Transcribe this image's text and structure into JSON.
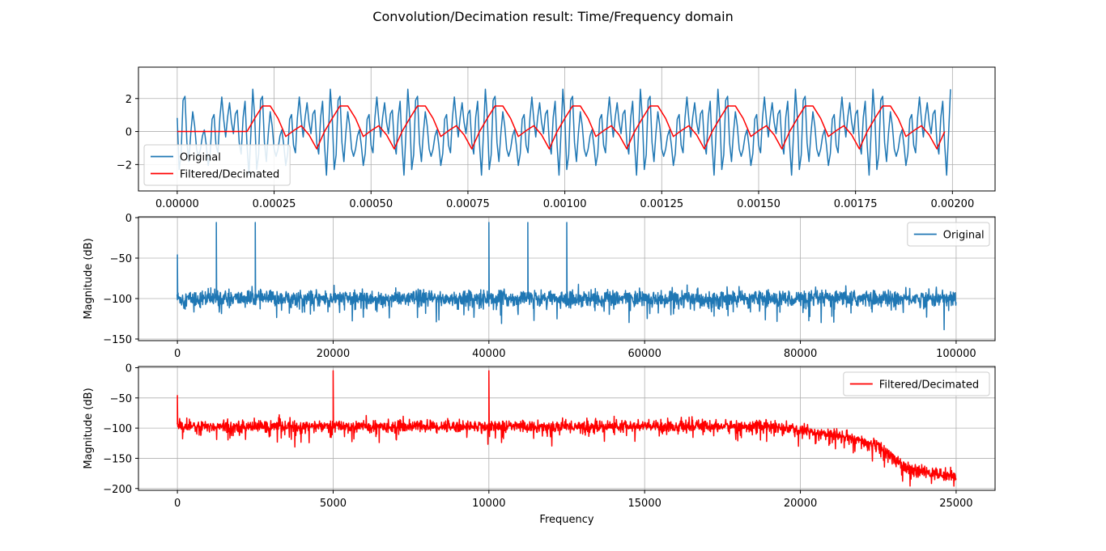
{
  "figure": {
    "title": "Convolution/Decimation result: Time/Frequency domain"
  },
  "colors": {
    "original": "#1f77b4",
    "filtered": "#ff0000",
    "grid": "#b0b0b0"
  },
  "chart_data": [
    {
      "type": "line",
      "title": "",
      "xlabel": "",
      "ylabel": "",
      "xlim": [
        -0.0001,
        0.00211
      ],
      "ylim": [
        -3.6,
        3.9
      ],
      "xticks": [
        0.0,
        0.00025,
        0.0005,
        0.00075,
        0.001,
        0.00125,
        0.0015,
        0.00175,
        0.002
      ],
      "xtick_labels": [
        "0.00000",
        "0.00025",
        "0.00050",
        "0.00075",
        "0.00100",
        "0.00125",
        "0.00150",
        "0.00175",
        "0.00200"
      ],
      "yticks": [
        -2,
        0,
        2
      ],
      "ytick_labels": [
        "−2",
        "0",
        "2"
      ],
      "grid": true,
      "legend": "lower-left",
      "series": [
        {
          "name": "Original",
          "description": "sum of sinusoids at 5 kHz, 10 kHz, 40 kHz, 45 kHz, 50 kHz, sampled at 200 kHz",
          "x_start": 0.0,
          "x_step": 5e-06,
          "n": 400,
          "components": [
            {
              "freq": 5000,
              "amp": 0.5,
              "phase": 1.5708
            },
            {
              "freq": 10000,
              "amp": 0.5,
              "phase": -1.5708
            },
            {
              "freq": 40000,
              "amp": 1.0,
              "phase": 1.5708
            },
            {
              "freq": 45000,
              "amp": 1.0,
              "phase": 0.6
            },
            {
              "freq": 50000,
              "amp": 1.0,
              "phase": 1.5708
            }
          ]
        },
        {
          "name": "Filtered/Decimated",
          "x_start": 0.0,
          "x_step": 2e-05,
          "n": 100,
          "values_period": [
            0.0,
            0.8,
            1.55,
            1.55,
            0.8,
            -0.3,
            0.05,
            0.35,
            -0.2,
            -1.05
          ],
          "leading_zeros": 9
        }
      ]
    },
    {
      "type": "line",
      "title": "",
      "xlabel": "",
      "ylabel": "Magnitude (dB)",
      "xlim": [
        -5000,
        105000
      ],
      "ylim": [
        -152,
        1
      ],
      "xticks": [
        0,
        20000,
        40000,
        60000,
        80000,
        100000
      ],
      "xtick_labels": [
        "0",
        "20000",
        "40000",
        "60000",
        "80000",
        "100000"
      ],
      "yticks": [
        0,
        -50,
        -100,
        -150
      ],
      "ytick_labels": [
        "0",
        "−50",
        "−100",
        "−150"
      ],
      "grid": true,
      "legend": "top-right",
      "series": [
        {
          "name": "Original",
          "x_range": [
            0,
            100000
          ],
          "noise_floor_db": -100,
          "peaks": [
            [
              0,
              -46
            ],
            [
              5000,
              -6
            ],
            [
              10000,
              -6
            ],
            [
              40000,
              -6
            ],
            [
              45000,
              -6
            ],
            [
              50000,
              -6
            ]
          ]
        }
      ]
    },
    {
      "type": "line",
      "title": "",
      "xlabel": "Frequency",
      "ylabel": "Magnitude (dB)",
      "xlim": [
        -1250,
        26250
      ],
      "ylim": [
        -203,
        2
      ],
      "xticks": [
        0,
        5000,
        10000,
        15000,
        20000,
        25000
      ],
      "xtick_labels": [
        "0",
        "5000",
        "10000",
        "15000",
        "20000",
        "25000"
      ],
      "yticks": [
        0,
        -50,
        -100,
        -150,
        -200
      ],
      "ytick_labels": [
        "0",
        "−50",
        "−100",
        "−150",
        "−200"
      ],
      "grid": true,
      "legend": "top-right",
      "series": [
        {
          "name": "Filtered/Decimated",
          "x_range": [
            0,
            25000
          ],
          "noise_floor_db": -97,
          "rolloff": [
            [
              19000,
              -97
            ],
            [
              21000,
              -110
            ],
            [
              22500,
              -130
            ],
            [
              23500,
              -170
            ],
            [
              25000,
              -180
            ]
          ],
          "peaks": [
            [
              0,
              -46
            ],
            [
              5000,
              -5
            ],
            [
              10000,
              -5
            ]
          ]
        }
      ]
    }
  ]
}
